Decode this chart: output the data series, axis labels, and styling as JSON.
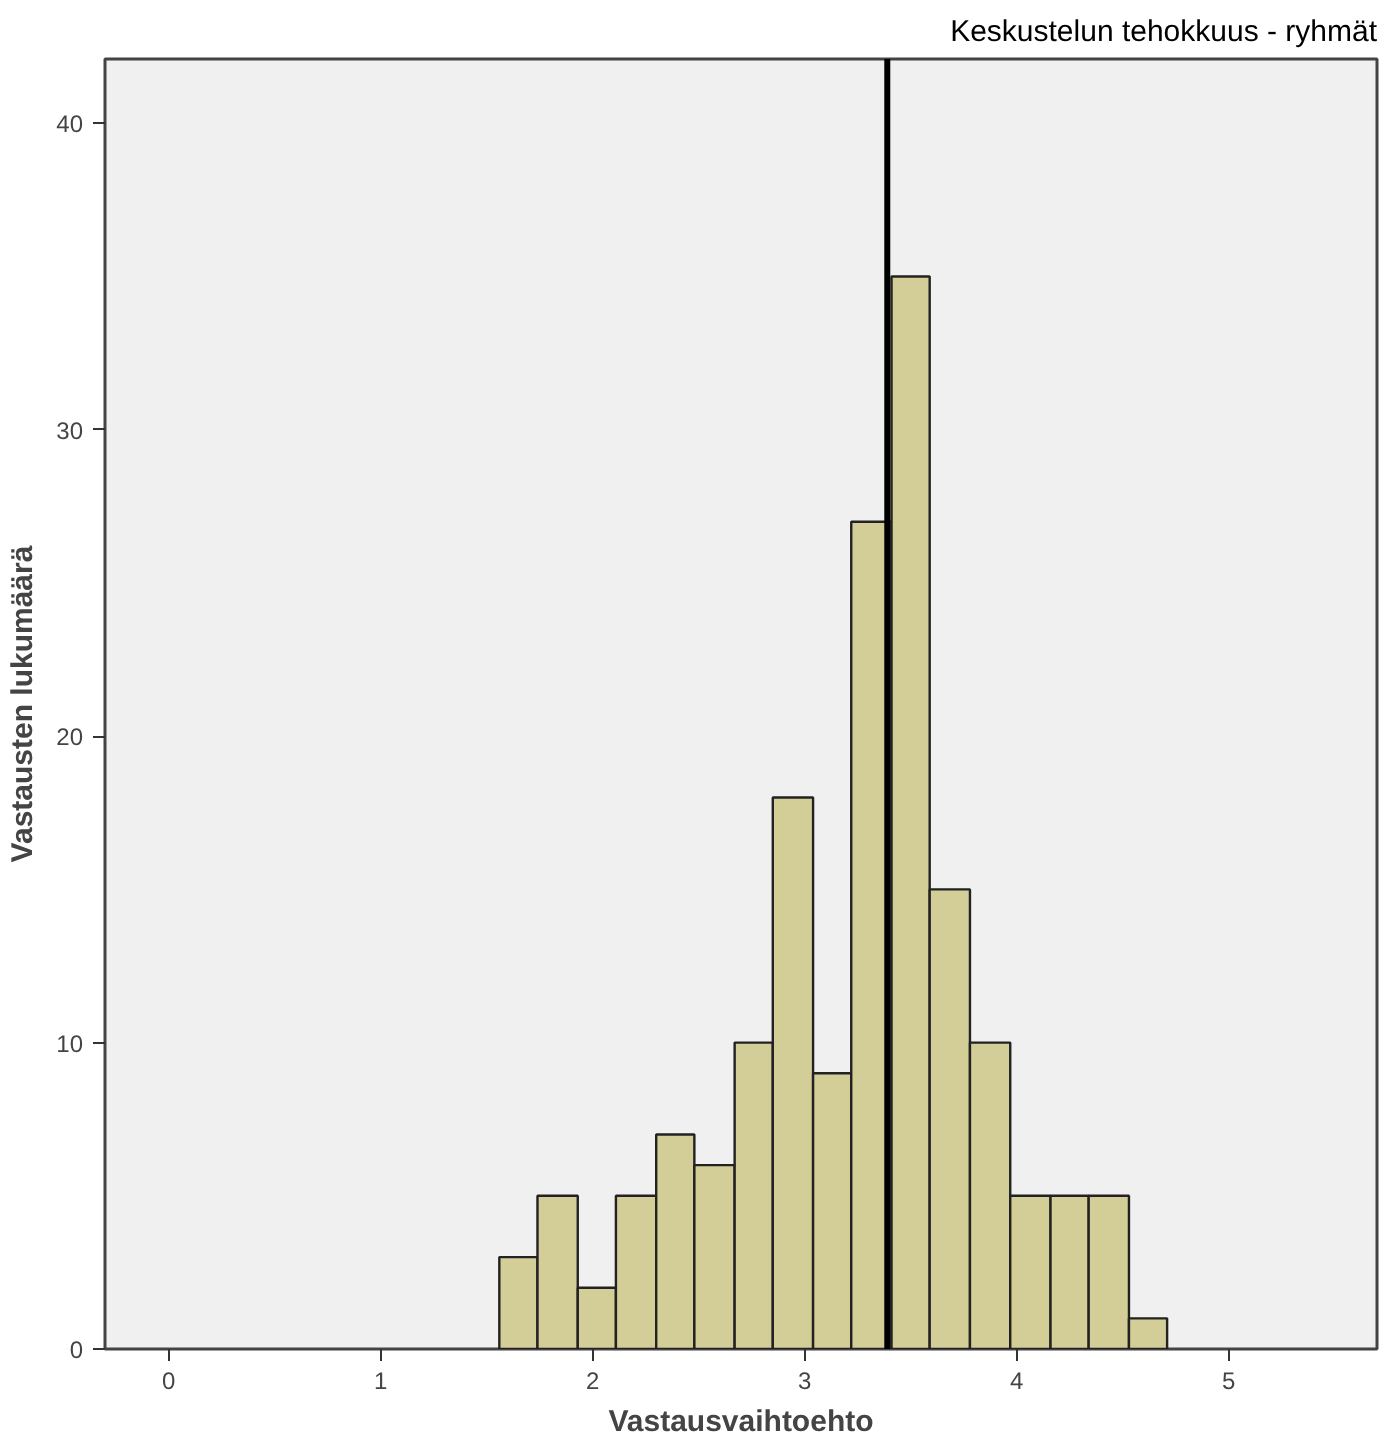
{
  "chart_data": {
    "type": "histogram",
    "title": "Keskustelun tehokkuus - ryhmät",
    "xlabel": "Vastausvaihtoehto",
    "ylabel": "Vastausten lukumäärä",
    "bins": [
      1.56,
      1.74,
      1.93,
      2.11,
      2.3,
      2.48,
      2.67,
      2.85,
      3.04,
      3.22,
      3.41,
      3.59,
      3.78,
      3.97,
      4.16,
      4.34,
      4.53,
      4.71
    ],
    "values": [
      3,
      5,
      2,
      5,
      7,
      6,
      10,
      18,
      9,
      27,
      35,
      15,
      10,
      5,
      5,
      5,
      1
    ],
    "color": "#d3ce97",
    "xlim": [
      -0.3,
      5.7
    ],
    "xticks": [
      0,
      1,
      2,
      3,
      4,
      5
    ],
    "ylim": [
      0,
      42.1
    ],
    "yticks": [
      0,
      10,
      20,
      30,
      40
    ],
    "ref_lines": [
      {
        "axis": "x",
        "value": 3.39,
        "color": "#000000"
      }
    ],
    "grid": false
  }
}
